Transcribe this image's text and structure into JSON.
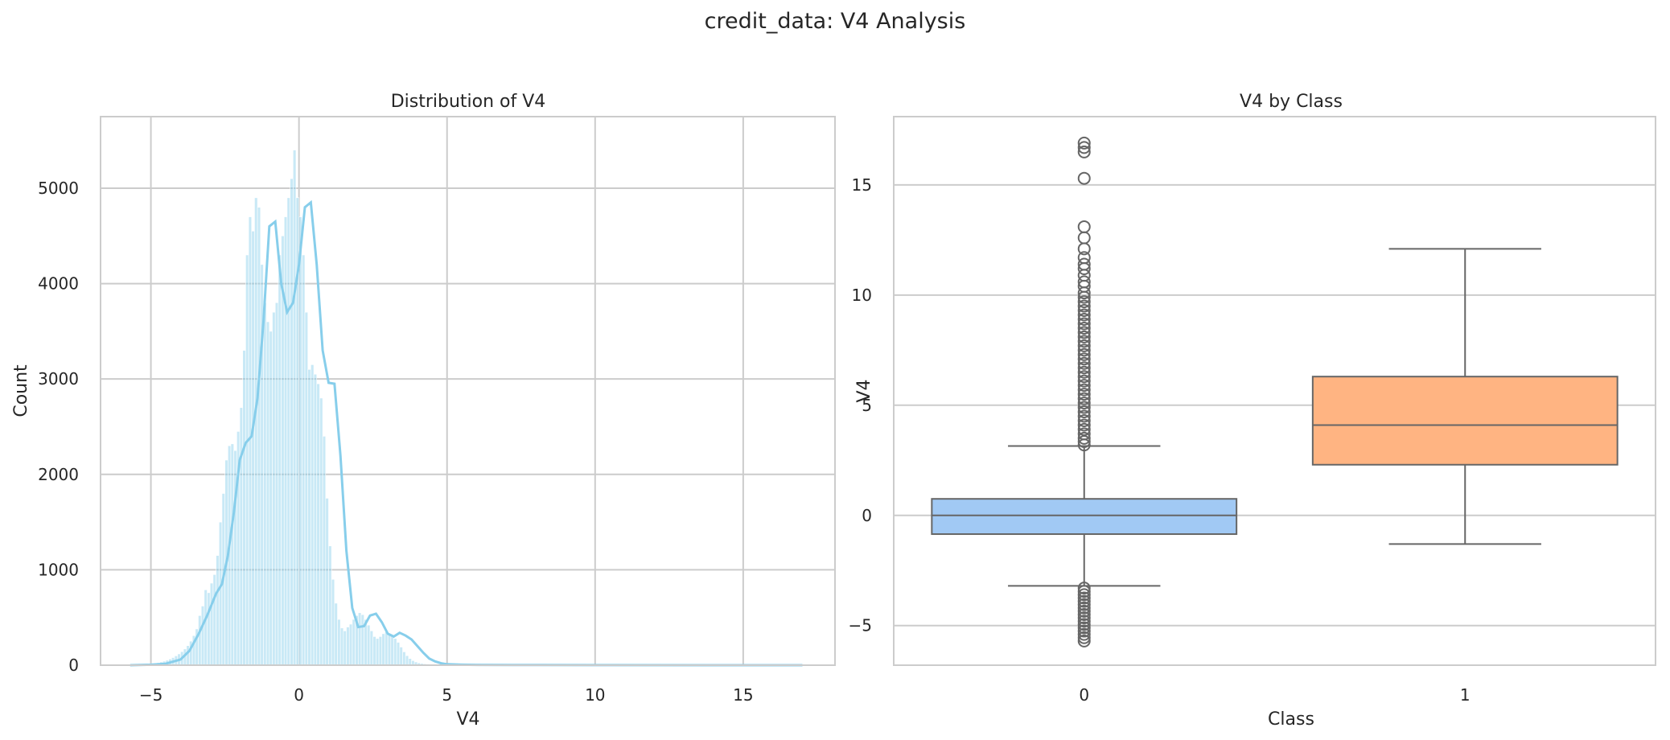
{
  "figure": {
    "suptitle": "credit_data: V4 Analysis"
  },
  "chart_data": [
    {
      "type": "bar",
      "title": "Distribution of V4",
      "xlabel": "V4",
      "ylabel": "Count",
      "xlim": [
        -6.7,
        18.1
      ],
      "ylim": [
        0,
        5750
      ],
      "xticks": [
        -5,
        0,
        5,
        10,
        15
      ],
      "xtick_labels": [
        "−5",
        "0",
        "5",
        "10",
        "15"
      ],
      "yticks": [
        0,
        1000,
        2000,
        3000,
        4000,
        5000
      ],
      "ytick_labels": [
        "0",
        "1000",
        "2000",
        "3000",
        "4000",
        "5000"
      ],
      "grid": true,
      "colors": {
        "bar": "#87ceeb",
        "kde": "#87ceeb"
      },
      "histogram": {
        "bin_start": -5.7,
        "bin_width": 0.1,
        "counts": [
          3,
          4,
          5,
          6,
          8,
          10,
          13,
          16,
          20,
          26,
          34,
          42,
          52,
          64,
          80,
          98,
          118,
          142,
          170,
          205,
          252,
          310,
          380,
          520,
          620,
          790,
          760,
          860,
          950,
          1150,
          1500,
          1800,
          2150,
          2300,
          2320,
          2250,
          2450,
          2700,
          3300,
          4300,
          4700,
          4550,
          4900,
          4800,
          4200,
          3800,
          3600,
          3500,
          3700,
          3800,
          4300,
          4500,
          4700,
          4900,
          5100,
          5400,
          4900,
          4700,
          4300,
          3700,
          3100,
          3150,
          3050,
          2950,
          2800,
          2400,
          1750,
          1250,
          900,
          650,
          480,
          390,
          360,
          400,
          430,
          480,
          520,
          550,
          530,
          480,
          420,
          360,
          300,
          280,
          300,
          330,
          350,
          330,
          310,
          280,
          240,
          190,
          140,
          100,
          70,
          48,
          34,
          24,
          18,
          14,
          12
        ]
      },
      "tail": {
        "x": [
          5.3,
          6,
          8,
          10,
          12,
          14,
          16,
          17
        ],
        "count": [
          10,
          8,
          6,
          5,
          4,
          3,
          2,
          1
        ]
      },
      "kde": {
        "x": [
          -5.7,
          -5,
          -4.5,
          -4,
          -3.7,
          -3.4,
          -3.1,
          -2.8,
          -2.6,
          -2.4,
          -2.2,
          -2,
          -1.8,
          -1.6,
          -1.4,
          -1.2,
          -1.0,
          -0.8,
          -0.6,
          -0.4,
          -0.2,
          0,
          0.2,
          0.4,
          0.6,
          0.8,
          1.0,
          1.2,
          1.4,
          1.6,
          1.8,
          2.0,
          2.2,
          2.4,
          2.6,
          2.8,
          3.0,
          3.2,
          3.4,
          3.6,
          3.8,
          4.0,
          4.2,
          4.4,
          4.6,
          4.8,
          5.0,
          5.5,
          6,
          8,
          10,
          15,
          17
        ],
        "y": [
          0,
          5,
          15,
          60,
          150,
          320,
          520,
          750,
          850,
          1150,
          1600,
          2150,
          2330,
          2400,
          2800,
          3600,
          4600,
          4650,
          4000,
          3700,
          3800,
          4200,
          4800,
          4850,
          4200,
          3300,
          2960,
          2950,
          2200,
          1200,
          600,
          400,
          410,
          520,
          540,
          450,
          330,
          300,
          340,
          310,
          270,
          200,
          130,
          70,
          40,
          20,
          10,
          5,
          3,
          2,
          1,
          0,
          0
        ]
      }
    },
    {
      "type": "box",
      "title": "V4 by Class",
      "xlabel": "Class",
      "ylabel": "V4",
      "categories": [
        "0",
        "1"
      ],
      "ylim": [
        -6.8,
        18.1
      ],
      "yticks": [
        -5,
        0,
        5,
        10,
        15
      ],
      "ytick_labels": [
        "−5",
        "0",
        "5",
        "10",
        "15"
      ],
      "grid": true,
      "boxes": [
        {
          "category": "0",
          "color": "#a1c9f4",
          "q1": -0.85,
          "median": 0.0,
          "q3": 0.75,
          "whisker_low": -3.2,
          "whisker_high": 3.15,
          "outliers": [
            3.2,
            3.35,
            3.5,
            3.7,
            3.9,
            4.1,
            4.3,
            4.5,
            4.7,
            4.9,
            5.1,
            5.3,
            5.5,
            5.7,
            5.9,
            6.1,
            6.3,
            6.5,
            6.7,
            6.9,
            7.1,
            7.3,
            7.5,
            7.7,
            7.9,
            8.1,
            8.3,
            8.5,
            8.7,
            8.9,
            9.1,
            9.3,
            9.5,
            9.7,
            9.9,
            10.1,
            10.4,
            10.6,
            10.9,
            11.2,
            11.4,
            11.7,
            12.1,
            12.6,
            13.1,
            15.3,
            16.5,
            16.7,
            16.9,
            -3.3,
            -3.45,
            -3.6,
            -3.75,
            -3.9,
            -4.05,
            -4.2,
            -4.35,
            -4.5,
            -4.65,
            -4.8,
            -4.95,
            -5.1,
            -5.25,
            -5.4,
            -5.55,
            -5.7
          ]
        },
        {
          "category": "1",
          "color": "#ffb482",
          "q1": 2.3,
          "median": 4.1,
          "q3": 6.3,
          "whisker_low": -1.3,
          "whisker_high": 12.1,
          "outliers": []
        }
      ]
    }
  ]
}
